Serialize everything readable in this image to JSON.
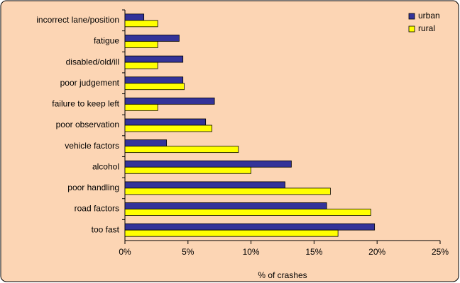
{
  "chart_data": {
    "type": "hbar",
    "x_label": "% of crashes",
    "categories": [
      "incorrect lane/position",
      "fatigue",
      "disabled/old/ill",
      "poor judgement",
      "failure to keep left",
      "poor observation",
      "vehicle factors",
      "alcohol",
      "poor handling",
      "road factors",
      "too fast"
    ],
    "series": [
      {
        "name": "urban",
        "color": "#333399",
        "values": [
          1.5,
          4.3,
          4.6,
          4.6,
          7.1,
          6.4,
          3.3,
          13.2,
          12.7,
          16.0,
          19.8
        ]
      },
      {
        "name": "rural",
        "color": "#ffff00",
        "values": [
          2.6,
          2.6,
          2.6,
          4.7,
          2.6,
          6.9,
          9.0,
          10.0,
          16.3,
          19.5,
          16.9
        ]
      }
    ],
    "xlim": [
      0,
      25
    ],
    "xticks": [
      {
        "value": 0,
        "label": "0%"
      },
      {
        "value": 5,
        "label": "5%"
      },
      {
        "value": 10,
        "label": "10%"
      },
      {
        "value": 15,
        "label": "15%"
      },
      {
        "value": 20,
        "label": "20%"
      },
      {
        "value": 25,
        "label": "25%"
      }
    ],
    "legend": "top-right"
  }
}
